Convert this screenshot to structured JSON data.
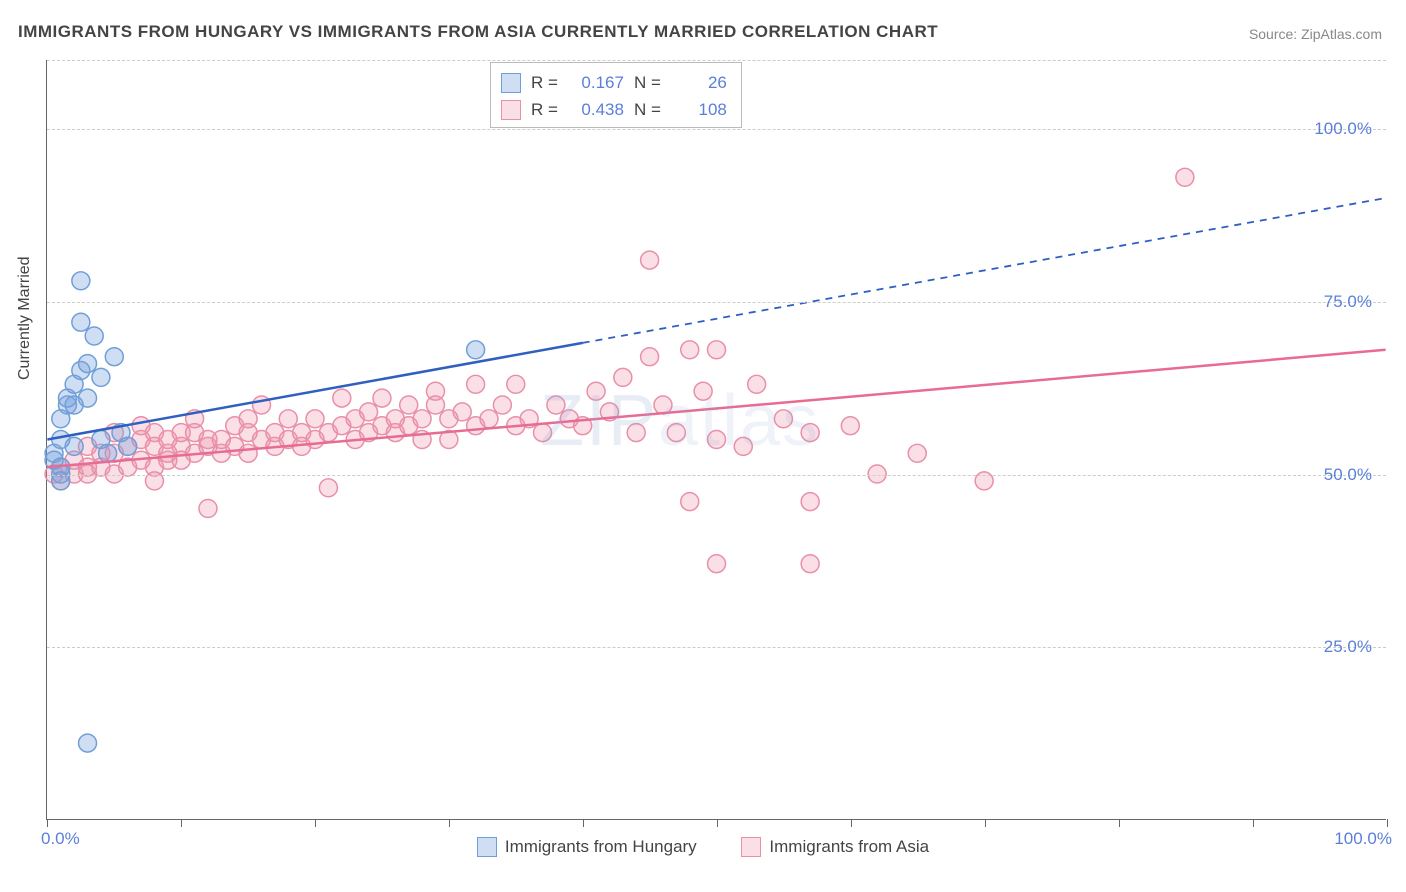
{
  "title": "IMMIGRANTS FROM HUNGARY VS IMMIGRANTS FROM ASIA CURRENTLY MARRIED CORRELATION CHART",
  "source": "Source: ZipAtlas.com",
  "watermark": "ZIPatlas",
  "y_axis_label": "Currently Married",
  "chart": {
    "type": "scatter",
    "xlim": [
      0,
      100
    ],
    "ylim": [
      0,
      110
    ],
    "x_ticks_pct": [
      0,
      10,
      20,
      30,
      40,
      50,
      60,
      70,
      80,
      90,
      100
    ],
    "y_ticks": [
      {
        "v": 25,
        "label": "25.0%"
      },
      {
        "v": 50,
        "label": "50.0%"
      },
      {
        "v": 75,
        "label": "75.0%"
      },
      {
        "v": 100,
        "label": "100.0%"
      }
    ],
    "x_label_0": "0.0%",
    "x_label_100": "100.0%",
    "background_color": "#ffffff",
    "grid_color": "#cccccc",
    "marker_radius": 9,
    "marker_stroke_width": 1.5,
    "line_width": 2.5,
    "series": [
      {
        "name": "Immigrants from Hungary",
        "color_fill": "rgba(120,160,220,0.35)",
        "color_stroke": "#6f9fd8",
        "line_color": "#2f5fc0",
        "r_value": "0.167",
        "n_value": "26",
        "trend": {
          "x1": 0,
          "y1": 55,
          "x2": 40,
          "y2": 69,
          "ext_x": 100,
          "ext_y": 90
        },
        "points": [
          [
            0.5,
            52
          ],
          [
            0.5,
            53
          ],
          [
            1,
            50
          ],
          [
            1,
            51
          ],
          [
            1,
            55
          ],
          [
            1,
            58
          ],
          [
            1.5,
            60
          ],
          [
            1.5,
            61
          ],
          [
            2,
            60
          ],
          [
            2,
            63
          ],
          [
            2,
            54
          ],
          [
            2.5,
            72
          ],
          [
            2.5,
            65
          ],
          [
            2.5,
            78
          ],
          [
            3,
            66
          ],
          [
            3,
            61
          ],
          [
            3.5,
            70
          ],
          [
            4,
            55
          ],
          [
            4,
            64
          ],
          [
            4.5,
            53
          ],
          [
            5,
            67
          ],
          [
            5.5,
            56
          ],
          [
            6,
            54
          ],
          [
            3,
            11
          ],
          [
            32,
            68
          ],
          [
            1,
            49
          ]
        ]
      },
      {
        "name": "Immigrants from Asia",
        "color_fill": "rgba(240,150,175,0.30)",
        "color_stroke": "#e98fa8",
        "line_color": "#e86b94",
        "r_value": "0.438",
        "n_value": "108",
        "trend": {
          "x1": 0,
          "y1": 51,
          "x2": 100,
          "y2": 68
        },
        "points": [
          [
            0.5,
            50
          ],
          [
            1,
            51
          ],
          [
            1,
            49
          ],
          [
            2,
            50
          ],
          [
            2,
            52
          ],
          [
            3,
            50
          ],
          [
            3,
            51
          ],
          [
            3,
            54
          ],
          [
            4,
            51
          ],
          [
            4,
            53
          ],
          [
            5,
            50
          ],
          [
            5,
            53
          ],
          [
            5,
            56
          ],
          [
            6,
            51
          ],
          [
            6,
            54
          ],
          [
            7,
            52
          ],
          [
            7,
            55
          ],
          [
            7,
            57
          ],
          [
            8,
            51
          ],
          [
            8,
            54
          ],
          [
            8,
            56
          ],
          [
            9,
            52
          ],
          [
            9,
            53
          ],
          [
            9,
            55
          ],
          [
            10,
            54
          ],
          [
            10,
            56
          ],
          [
            10,
            52
          ],
          [
            11,
            53
          ],
          [
            11,
            56
          ],
          [
            11,
            58
          ],
          [
            12,
            54
          ],
          [
            12,
            55
          ],
          [
            12,
            45
          ],
          [
            13,
            53
          ],
          [
            13,
            55
          ],
          [
            14,
            54
          ],
          [
            14,
            57
          ],
          [
            15,
            53
          ],
          [
            15,
            56
          ],
          [
            15,
            58
          ],
          [
            16,
            55
          ],
          [
            16,
            60
          ],
          [
            17,
            54
          ],
          [
            17,
            56
          ],
          [
            18,
            55
          ],
          [
            18,
            58
          ],
          [
            19,
            56
          ],
          [
            19,
            54
          ],
          [
            20,
            55
          ],
          [
            20,
            58
          ],
          [
            21,
            56
          ],
          [
            21,
            48
          ],
          [
            22,
            57
          ],
          [
            22,
            61
          ],
          [
            23,
            55
          ],
          [
            23,
            58
          ],
          [
            24,
            56
          ],
          [
            24,
            59
          ],
          [
            25,
            57
          ],
          [
            25,
            61
          ],
          [
            26,
            56
          ],
          [
            26,
            58
          ],
          [
            27,
            57
          ],
          [
            27,
            60
          ],
          [
            28,
            58
          ],
          [
            28,
            55
          ],
          [
            29,
            60
          ],
          [
            29,
            62
          ],
          [
            30,
            58
          ],
          [
            30,
            55
          ],
          [
            31,
            59
          ],
          [
            32,
            57
          ],
          [
            32,
            63
          ],
          [
            33,
            58
          ],
          [
            34,
            60
          ],
          [
            35,
            57
          ],
          [
            35,
            63
          ],
          [
            36,
            58
          ],
          [
            37,
            56
          ],
          [
            38,
            60
          ],
          [
            39,
            58
          ],
          [
            40,
            57
          ],
          [
            41,
            62
          ],
          [
            42,
            59
          ],
          [
            43,
            64
          ],
          [
            44,
            56
          ],
          [
            45,
            67
          ],
          [
            45,
            81
          ],
          [
            46,
            60
          ],
          [
            47,
            56
          ],
          [
            48,
            68
          ],
          [
            48,
            46
          ],
          [
            49,
            62
          ],
          [
            50,
            55
          ],
          [
            50,
            68
          ],
          [
            50,
            37
          ],
          [
            52,
            54
          ],
          [
            53,
            63
          ],
          [
            55,
            58
          ],
          [
            57,
            56
          ],
          [
            57,
            46
          ],
          [
            57,
            37
          ],
          [
            60,
            57
          ],
          [
            62,
            50
          ],
          [
            65,
            53
          ],
          [
            70,
            49
          ],
          [
            85,
            93
          ],
          [
            8,
            49
          ]
        ]
      }
    ]
  },
  "legend": {
    "hungary": "Immigrants from Hungary",
    "asia": "Immigrants from Asia"
  }
}
